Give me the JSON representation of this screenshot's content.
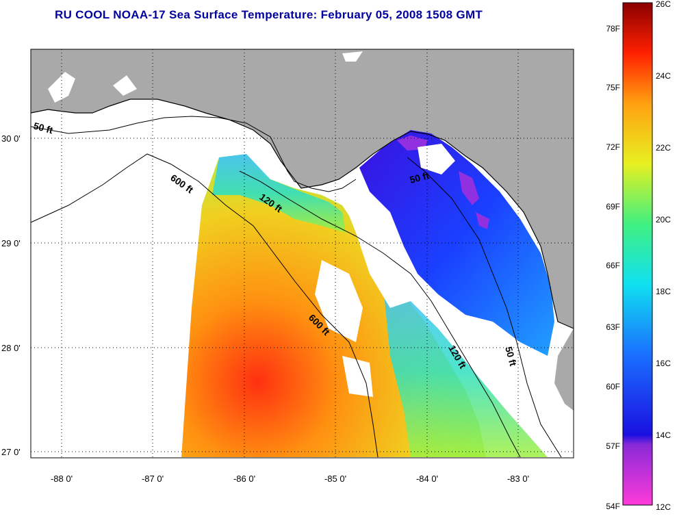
{
  "title": "RU COOL  NOAA-17  Sea Surface Temperature:  February 05, 2008 1508 GMT",
  "map": {
    "lat_labels": [
      "30 0'",
      "29 0'",
      "28 0'",
      "27 0'"
    ],
    "lon_labels": [
      "-88 0'",
      "-87 0'",
      "-86 0'",
      "-85 0'",
      "-84 0'",
      "-83 0'"
    ],
    "depth_labels": [
      "50 ft",
      "600 ft",
      "120 ft",
      "50 ft",
      "600 ft",
      "120 ft",
      "50 ft"
    ]
  },
  "colorbar": {
    "fahrenheit_labels": [
      "78F",
      "75F",
      "72F",
      "69F",
      "66F",
      "63F",
      "60F",
      "57F",
      "54F"
    ],
    "celsius_labels": [
      "26C",
      "24C",
      "22C",
      "20C",
      "18C",
      "16C",
      "14C",
      "12C"
    ],
    "range_c": [
      12,
      26
    ]
  },
  "colors": {
    "title": "#0000a0",
    "land": "#a9a9a9",
    "warm": "#ff3000",
    "cold": "#2020e0",
    "minimum": "#ff30d0"
  }
}
